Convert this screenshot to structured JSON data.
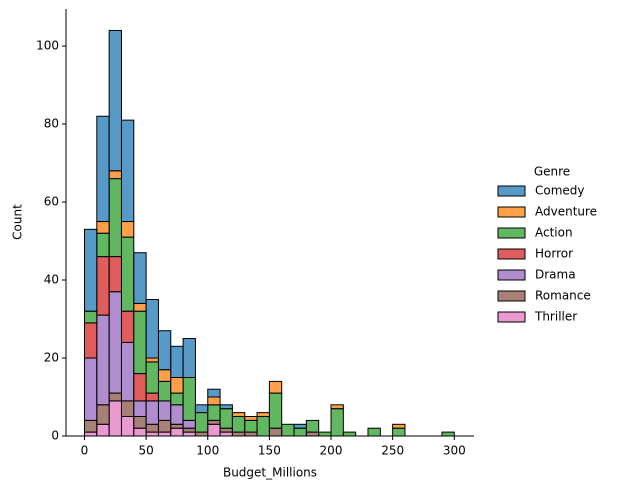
{
  "chart_data": {
    "type": "histogram",
    "multiple": "stack",
    "x_label": "Budget_Millions",
    "y_label": "Count",
    "legend_title": "Genre",
    "legend": "right",
    "bins": [
      0,
      10,
      20,
      30,
      40,
      50,
      60,
      70,
      80,
      90,
      100,
      110,
      120,
      130,
      140,
      150,
      160,
      170,
      180,
      190,
      200,
      210,
      220,
      230,
      240,
      250,
      260,
      270,
      280,
      290,
      300
    ],
    "series": [
      {
        "name": "Comedy",
        "color": "#1f77b4",
        "values": [
          21,
          27,
          36,
          26,
          13,
          15,
          10,
          8,
          10,
          2,
          2,
          1,
          0,
          0,
          0,
          0,
          0,
          1,
          0,
          0,
          0,
          0,
          0,
          0,
          0,
          0,
          0,
          0,
          0,
          0
        ]
      },
      {
        "name": "Adventure",
        "color": "#ff7f0e",
        "values": [
          0,
          3,
          2,
          4,
          2,
          1,
          3,
          4,
          0,
          0,
          2,
          0,
          1,
          1,
          1,
          3,
          0,
          0,
          0,
          0,
          1,
          0,
          0,
          0,
          0,
          1,
          0,
          0,
          0,
          0
        ]
      },
      {
        "name": "Action",
        "color": "#2ca02c",
        "values": [
          3,
          6,
          20,
          19,
          16,
          8,
          5,
          3,
          11,
          5,
          4,
          5,
          4,
          3,
          5,
          9,
          3,
          2,
          3,
          1,
          7,
          1,
          0,
          2,
          0,
          2,
          0,
          0,
          0,
          1
        ]
      },
      {
        "name": "Horror",
        "color": "#d62728",
        "values": [
          9,
          15,
          9,
          8,
          7,
          2,
          0,
          0,
          0,
          0,
          0,
          0,
          0,
          0,
          0,
          0,
          0,
          0,
          0,
          0,
          0,
          0,
          0,
          0,
          0,
          0,
          0,
          0,
          0,
          0
        ]
      },
      {
        "name": "Drama",
        "color": "#9467bd",
        "values": [
          16,
          23,
          26,
          15,
          4,
          6,
          5,
          5,
          2,
          0,
          0,
          0,
          0,
          0,
          0,
          0,
          0,
          0,
          0,
          0,
          0,
          0,
          0,
          0,
          0,
          0,
          0,
          0,
          0,
          0
        ]
      },
      {
        "name": "Romance",
        "color": "#8c564b",
        "values": [
          3,
          5,
          2,
          4,
          3,
          2,
          3,
          1,
          1,
          1,
          1,
          1,
          1,
          1,
          0,
          2,
          0,
          0,
          1,
          0,
          0,
          0,
          0,
          0,
          0,
          0,
          0,
          0,
          0,
          0
        ]
      },
      {
        "name": "Thriller",
        "color": "#e377c2",
        "values": [
          1,
          3,
          9,
          5,
          2,
          1,
          1,
          2,
          1,
          0,
          3,
          1,
          0,
          0,
          0,
          0,
          0,
          0,
          0,
          0,
          0,
          0,
          0,
          0,
          0,
          0,
          0,
          0,
          0,
          0
        ]
      }
    ],
    "xlim": [
      -15,
      316
    ],
    "ylim": [
      0,
      109.5
    ],
    "xticks": [
      0,
      50,
      100,
      150,
      200,
      250,
      300
    ],
    "yticks": [
      0,
      20,
      40,
      60,
      80,
      100
    ]
  }
}
